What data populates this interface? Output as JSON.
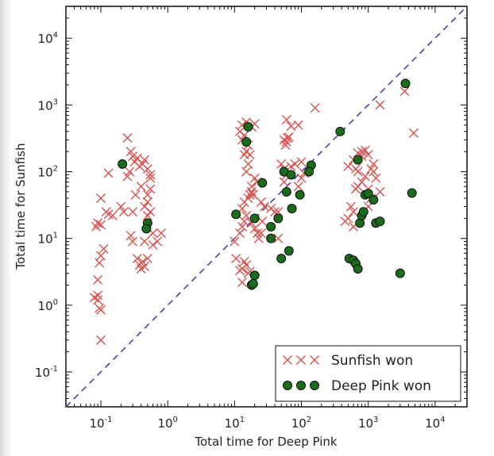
{
  "chart_data": {
    "type": "scatter",
    "xlabel": "Total time for Deep Pink",
    "ylabel": "Total time for Sunfish",
    "xscale": "log",
    "yscale": "log",
    "xlim": [
      0.03,
      30000
    ],
    "ylim": [
      0.03,
      30000
    ],
    "x_ticks": [
      {
        "value": 0.1,
        "base": "10",
        "exp": "-1"
      },
      {
        "value": 1,
        "base": "10",
        "exp": "0"
      },
      {
        "value": 10,
        "base": "10",
        "exp": "1"
      },
      {
        "value": 100,
        "base": "10",
        "exp": "2"
      },
      {
        "value": 1000,
        "base": "10",
        "exp": "3"
      },
      {
        "value": 10000,
        "base": "10",
        "exp": "4"
      }
    ],
    "y_ticks": [
      {
        "value": 0.1,
        "base": "10",
        "exp": "-1"
      },
      {
        "value": 1,
        "base": "10",
        "exp": "0"
      },
      {
        "value": 10,
        "base": "10",
        "exp": "1"
      },
      {
        "value": 100,
        "base": "10",
        "exp": "2"
      },
      {
        "value": 1000,
        "base": "10",
        "exp": "3"
      },
      {
        "value": 10000,
        "base": "10",
        "exp": "4"
      }
    ],
    "diagonal": {
      "from": [
        0.03,
        0.03
      ],
      "to": [
        30000,
        30000
      ],
      "color": "#4444aa",
      "style": "dashed"
    },
    "legend": {
      "position": "bottom-right"
    },
    "series": [
      {
        "name": "Sunfish won",
        "marker": "x",
        "color": "#d9534f",
        "points": [
          [
            0.08,
            1.3
          ],
          [
            0.09,
            1.4
          ],
          [
            0.09,
            1.2
          ],
          [
            0.095,
            0.9
          ],
          [
            0.1,
            0.85
          ],
          [
            0.09,
            2.4
          ],
          [
            0.095,
            4.3
          ],
          [
            0.1,
            5.5
          ],
          [
            0.085,
            15
          ],
          [
            0.09,
            17
          ],
          [
            0.1,
            16
          ],
          [
            0.12,
            25
          ],
          [
            0.13,
            23
          ],
          [
            0.15,
            22
          ],
          [
            0.1,
            40
          ],
          [
            0.13,
            95
          ],
          [
            0.11,
            7
          ],
          [
            0.1,
            0.3
          ],
          [
            0.2,
            30
          ],
          [
            0.22,
            25
          ],
          [
            0.25,
            320
          ],
          [
            0.28,
            200
          ],
          [
            0.3,
            170
          ],
          [
            0.32,
            140
          ],
          [
            0.27,
            100
          ],
          [
            0.25,
            85
          ],
          [
            0.35,
            160
          ],
          [
            0.38,
            120
          ],
          [
            0.4,
            60
          ],
          [
            0.33,
            45
          ],
          [
            0.3,
            25
          ],
          [
            0.28,
            11
          ],
          [
            0.3,
            9
          ],
          [
            0.35,
            5
          ],
          [
            0.38,
            4
          ],
          [
            0.4,
            3.5
          ],
          [
            0.42,
            4.5
          ],
          [
            0.45,
            3.8
          ],
          [
            0.5,
            5
          ],
          [
            0.45,
            9
          ],
          [
            0.5,
            22
          ],
          [
            0.45,
            30
          ],
          [
            0.5,
            45
          ],
          [
            0.55,
            80
          ],
          [
            0.55,
            55
          ],
          [
            0.5,
            35
          ],
          [
            0.55,
            25
          ],
          [
            0.6,
            12
          ],
          [
            0.8,
            12
          ],
          [
            0.7,
            9
          ],
          [
            0.6,
            8
          ],
          [
            0.45,
            150
          ],
          [
            0.42,
            130
          ],
          [
            0.5,
            110
          ],
          [
            0.55,
            90
          ],
          [
            10,
            9
          ],
          [
            10.5,
            5
          ],
          [
            12,
            3.3
          ],
          [
            13,
            3.5
          ],
          [
            14,
            4.5
          ],
          [
            15,
            4
          ],
          [
            13,
            2.2
          ],
          [
            16,
            3
          ],
          [
            17,
            3.2
          ],
          [
            12,
            12
          ],
          [
            13,
            15
          ],
          [
            14,
            18
          ],
          [
            15,
            22
          ],
          [
            13,
            28
          ],
          [
            14,
            35
          ],
          [
            16,
            40
          ],
          [
            17,
            45
          ],
          [
            18,
            50
          ],
          [
            15,
            100
          ],
          [
            14,
            180
          ],
          [
            15,
            200
          ],
          [
            16,
            250
          ],
          [
            13,
            300
          ],
          [
            14,
            350
          ],
          [
            12,
            400
          ],
          [
            13,
            500
          ],
          [
            15,
            550
          ],
          [
            18,
            470
          ],
          [
            20,
            520
          ],
          [
            17,
            180
          ],
          [
            16,
            130
          ],
          [
            20,
            80
          ],
          [
            22,
            70
          ],
          [
            18,
            60
          ],
          [
            19,
            45
          ],
          [
            25,
            35
          ],
          [
            28,
            30
          ],
          [
            35,
            28
          ],
          [
            40,
            25
          ],
          [
            22,
            12
          ],
          [
            23,
            10
          ],
          [
            25,
            12
          ],
          [
            26,
            18
          ],
          [
            18,
            17
          ],
          [
            20,
            14
          ],
          [
            45,
            10
          ],
          [
            50,
            130
          ],
          [
            55,
            110
          ],
          [
            45,
            25
          ],
          [
            55,
            70
          ],
          [
            60,
            90
          ],
          [
            70,
            120
          ],
          [
            80,
            130
          ],
          [
            100,
            80
          ],
          [
            90,
            60
          ],
          [
            55,
            300
          ],
          [
            58,
            250
          ],
          [
            60,
            280
          ],
          [
            62,
            320
          ],
          [
            65,
            330
          ],
          [
            60,
            600
          ],
          [
            70,
            480
          ],
          [
            90,
            500
          ],
          [
            100,
            140
          ],
          [
            110,
            95
          ],
          [
            160,
            900
          ],
          [
            500,
            120
          ],
          [
            600,
            150
          ],
          [
            650,
            110
          ],
          [
            700,
            100
          ],
          [
            700,
            190
          ],
          [
            800,
            200
          ],
          [
            800,
            170
          ],
          [
            900,
            210
          ],
          [
            1000,
            180
          ],
          [
            1200,
            130
          ],
          [
            1100,
            110
          ],
          [
            900,
            85
          ],
          [
            800,
            70
          ],
          [
            700,
            60
          ],
          [
            650,
            55
          ],
          [
            1000,
            55
          ],
          [
            1200,
            100
          ],
          [
            1300,
            80
          ],
          [
            1100,
            40
          ],
          [
            1000,
            30
          ],
          [
            1500,
            50
          ],
          [
            550,
            30
          ],
          [
            600,
            25
          ],
          [
            500,
            20
          ],
          [
            600,
            15
          ],
          [
            450,
            18
          ],
          [
            1500,
            1000
          ],
          [
            3500,
            1600
          ],
          [
            4800,
            380
          ]
        ]
      },
      {
        "name": "Deep Pink won",
        "marker": "o",
        "color": "#1a6b1a",
        "points": [
          [
            0.21,
            130
          ],
          [
            0.5,
            17
          ],
          [
            0.48,
            14
          ],
          [
            10.5,
            23
          ],
          [
            15,
            280
          ],
          [
            16,
            470
          ],
          [
            20,
            20
          ],
          [
            18,
            2
          ],
          [
            19,
            2.1
          ],
          [
            20,
            2.8
          ],
          [
            26,
            68
          ],
          [
            35,
            15
          ],
          [
            35,
            10
          ],
          [
            45,
            20
          ],
          [
            50,
            5
          ],
          [
            55,
            100
          ],
          [
            60,
            50
          ],
          [
            65,
            6.5
          ],
          [
            72,
            28
          ],
          [
            70,
            90
          ],
          [
            95,
            45
          ],
          [
            140,
            125
          ],
          [
            130,
            100
          ],
          [
            380,
            400
          ],
          [
            520,
            5
          ],
          [
            600,
            4.7
          ],
          [
            650,
            4.2
          ],
          [
            700,
            3.5
          ],
          [
            750,
            17
          ],
          [
            800,
            22
          ],
          [
            850,
            25
          ],
          [
            900,
            45
          ],
          [
            1000,
            47
          ],
          [
            1200,
            38
          ],
          [
            1300,
            17
          ],
          [
            1500,
            18
          ],
          [
            700,
            150
          ],
          [
            3000,
            3
          ],
          [
            3600,
            2100
          ],
          [
            4500,
            48
          ]
        ]
      }
    ]
  }
}
